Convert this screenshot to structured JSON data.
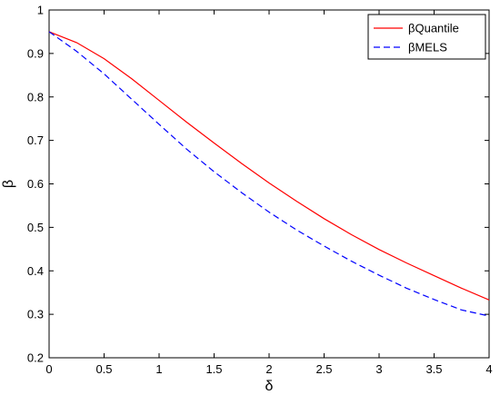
{
  "chart_data": {
    "type": "line",
    "title": "",
    "xlabel": "δ",
    "ylabel": "β",
    "xlim": [
      0,
      4
    ],
    "ylim": [
      0.2,
      1
    ],
    "grid": false,
    "legend_position": "top-right",
    "x_ticks": [
      0,
      0.5,
      1,
      1.5,
      2,
      2.5,
      3,
      3.5,
      4
    ],
    "x_tick_labels": [
      "0",
      "0.5",
      "1",
      "1.5",
      "2",
      "2.5",
      "3",
      "3.5",
      "4"
    ],
    "y_ticks": [
      0.2,
      0.3,
      0.4,
      0.5,
      0.6,
      0.7,
      0.8,
      0.9,
      1
    ],
    "y_tick_labels": [
      "0.2",
      "0.3",
      "0.4",
      "0.5",
      "0.6",
      "0.7",
      "0.8",
      "0.9",
      "1"
    ],
    "x": [
      0,
      0.25,
      0.5,
      0.75,
      1,
      1.25,
      1.5,
      1.75,
      2,
      2.25,
      2.5,
      2.75,
      3,
      3.25,
      3.5,
      3.75,
      4
    ],
    "series": [
      {
        "name": "βQuantile",
        "color": "#ff0000",
        "style": "solid",
        "values": [
          0.95,
          0.925,
          0.888,
          0.842,
          0.792,
          0.742,
          0.694,
          0.647,
          0.602,
          0.56,
          0.52,
          0.483,
          0.449,
          0.418,
          0.389,
          0.36,
          0.333
        ]
      },
      {
        "name": "βMELS",
        "color": "#0000ff",
        "style": "dashed",
        "values": [
          0.95,
          0.905,
          0.853,
          0.795,
          0.737,
          0.68,
          0.628,
          0.58,
          0.535,
          0.494,
          0.457,
          0.422,
          0.39,
          0.36,
          0.334,
          0.31,
          0.296
        ]
      }
    ]
  }
}
